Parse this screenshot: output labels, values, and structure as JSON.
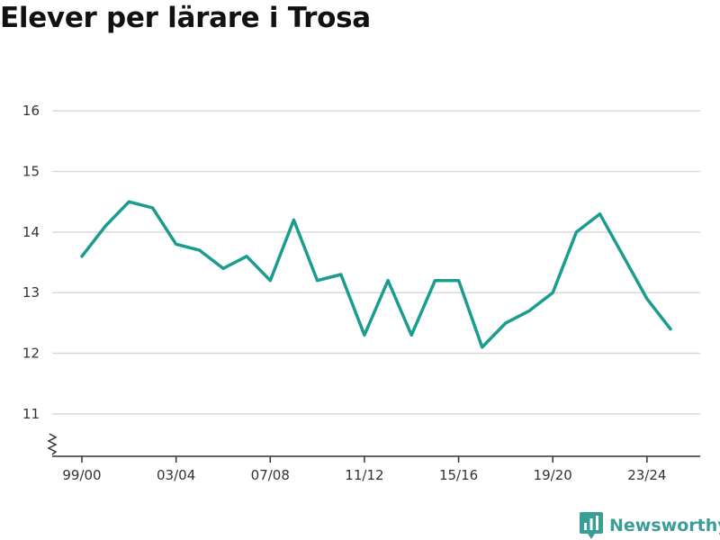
{
  "title": "Elever per lärare i Trosa",
  "brand": {
    "name": "Newsworthy",
    "icon": "newsworthy-logo-icon",
    "color": "#3a9e98"
  },
  "chart_data": {
    "type": "line",
    "title": "Elever per lärare i Trosa",
    "xlabel": "",
    "ylabel": "",
    "ylim": [
      10.3,
      16.3
    ],
    "y_axis_break": true,
    "yticks": [
      11,
      12,
      13,
      14,
      15,
      16
    ],
    "grid": true,
    "x": [
      "99/00",
      "00/01",
      "01/02",
      "02/03",
      "03/04",
      "04/05",
      "05/06",
      "06/07",
      "07/08",
      "08/09",
      "09/10",
      "10/11",
      "11/12",
      "12/13",
      "13/14",
      "14/15",
      "15/16",
      "16/17",
      "17/18",
      "18/19",
      "19/20",
      "20/21",
      "21/22",
      "22/23",
      "23/24",
      "24/25"
    ],
    "xtick_labels": [
      "99/00",
      "03/04",
      "07/08",
      "11/12",
      "15/16",
      "19/20",
      "23/24"
    ],
    "series": [
      {
        "color": "#1a9c8f",
        "values": [
          13.6,
          14.1,
          14.5,
          14.4,
          13.8,
          13.7,
          13.4,
          13.6,
          13.2,
          14.2,
          13.2,
          13.3,
          12.3,
          13.2,
          12.3,
          13.2,
          13.2,
          12.1,
          12.5,
          12.7,
          13.0,
          14.0,
          14.3,
          13.6,
          12.9,
          12.4
        ]
      }
    ]
  }
}
